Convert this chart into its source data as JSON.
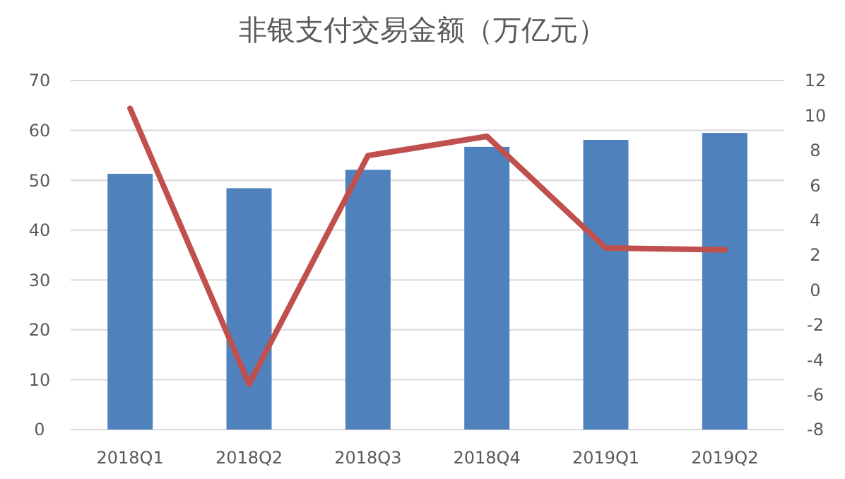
{
  "chart_data": {
    "type": "bar",
    "title": "非银支付交易金额（万亿元）",
    "categories": [
      "2018Q1",
      "2018Q2",
      "2018Q3",
      "2018Q4",
      "2019Q1",
      "2019Q2"
    ],
    "series": [
      {
        "color": "#4f81bd",
        "values": [
          51.3,
          48.4,
          52.1,
          56.7,
          58.1,
          59.5
        ]
      },
      {
        "type": "line",
        "axis": "y2",
        "color": "#c0504d",
        "values": [
          10.4,
          -5.4,
          7.7,
          8.8,
          2.4,
          2.3
        ]
      }
    ],
    "ylim": [
      0,
      70
    ],
    "yticks": [
      0,
      10,
      20,
      30,
      40,
      50,
      60,
      70
    ],
    "y2lim": [
      -8,
      12
    ],
    "y2ticks": [
      -8,
      -6,
      -4,
      -2,
      0,
      2,
      4,
      6,
      8,
      10,
      12
    ],
    "grid": "y",
    "marker": "none"
  }
}
